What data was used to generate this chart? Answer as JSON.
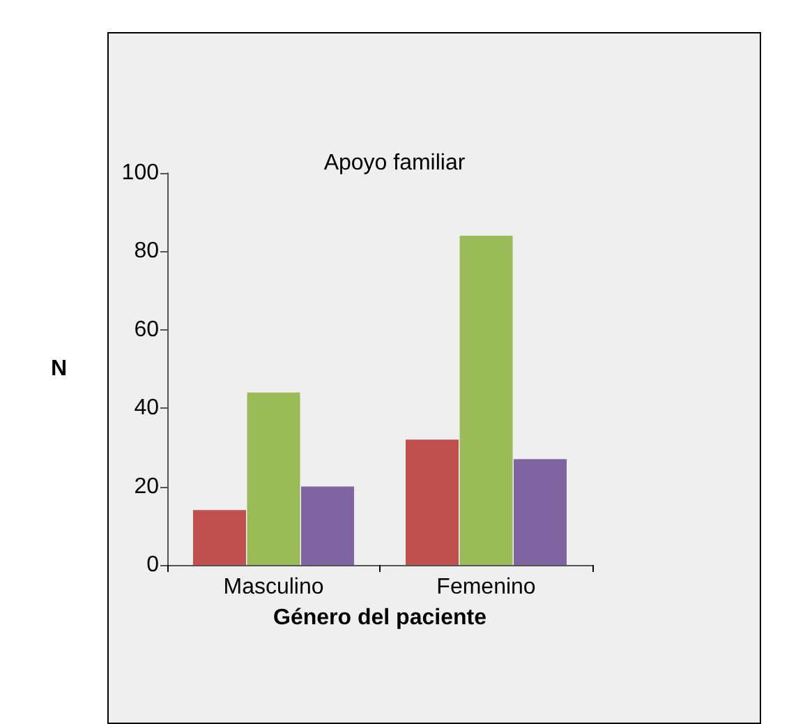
{
  "chart_data": {
    "type": "bar",
    "title": "Apoyo familiar",
    "xlabel": "Género del paciente",
    "ylabel": "N",
    "categories": [
      "Masculino",
      "Femenino"
    ],
    "series": [
      {
        "color": "#c0504d",
        "values": [
          14,
          32
        ]
      },
      {
        "color": "#9bbb59",
        "values": [
          44,
          84
        ]
      },
      {
        "color": "#8064a2",
        "values": [
          20,
          27
        ]
      }
    ],
    "ylim": [
      0,
      100
    ],
    "yticks": [
      0,
      20,
      40,
      60,
      80,
      100
    ],
    "grid": false
  }
}
